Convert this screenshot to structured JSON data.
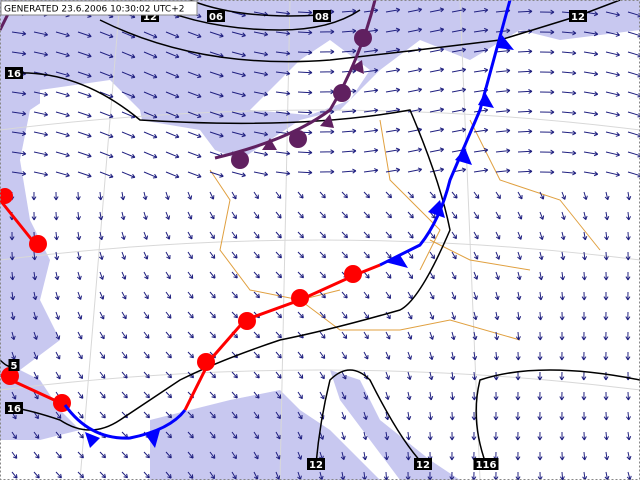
{
  "header": {
    "generated": "GENERATED 23.6.2006 10:30:02 UTC+2"
  },
  "isobar_labels": [
    "12",
    "06",
    "08",
    "12",
    "16",
    "5",
    "16",
    "12",
    "12",
    "116"
  ]
}
